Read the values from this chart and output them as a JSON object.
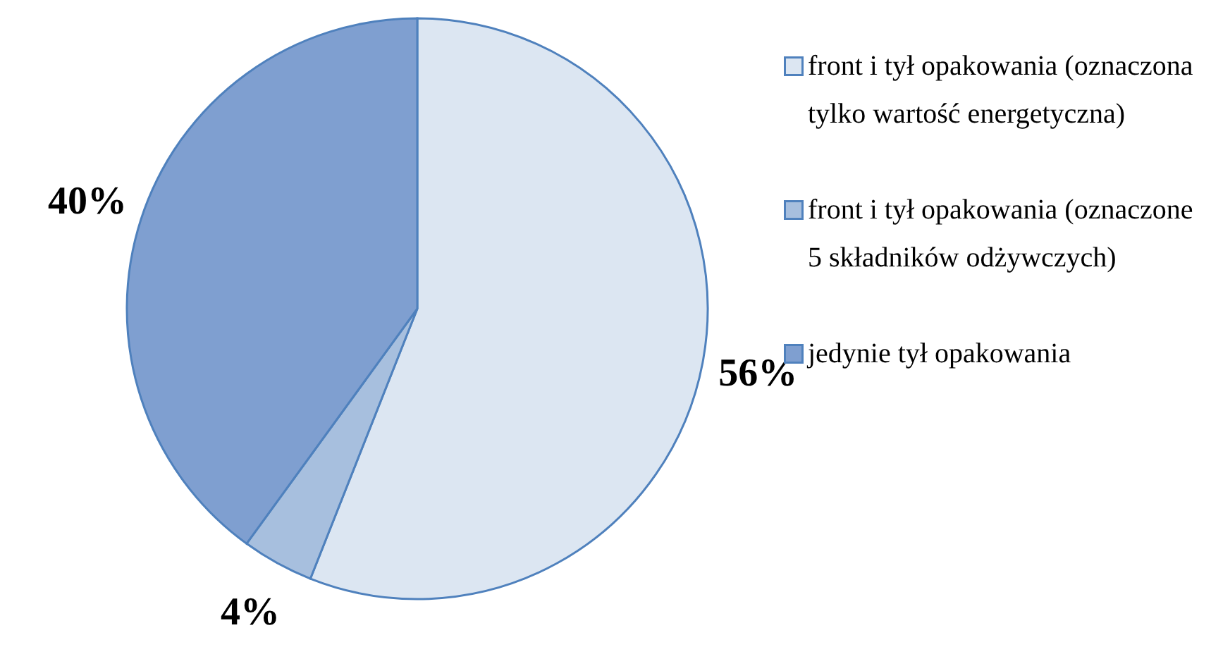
{
  "chart_data": {
    "type": "pie",
    "categories": [
      "front i tył opakowania (oznaczona tylko wartość energetyczna)",
      "front i tył opakowania (oznaczone 5 składników odżywczych)",
      "jedynie tył opakowania"
    ],
    "values": [
      56,
      4,
      40
    ],
    "colors": [
      "#dce6f2",
      "#a7bfde",
      "#7f9fd0"
    ],
    "value_labels": [
      "56%",
      "4%",
      "40%"
    ],
    "legend": "right"
  }
}
